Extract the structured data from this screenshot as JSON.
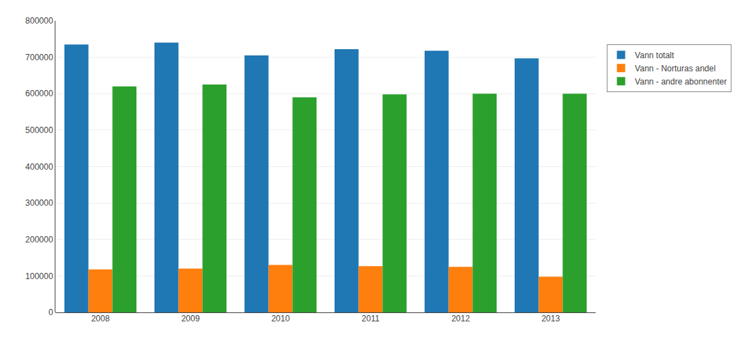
{
  "chart_data": {
    "type": "bar",
    "categories": [
      "2008",
      "2009",
      "2010",
      "2011",
      "2012",
      "2013"
    ],
    "series": [
      {
        "name": "Vann totalt",
        "values": [
          735000,
          740000,
          705000,
          722000,
          718000,
          697000
        ]
      },
      {
        "name": "Vann - Norturas andel",
        "values": [
          118000,
          120000,
          130000,
          127000,
          125000,
          98000
        ]
      },
      {
        "name": "Vann - andre abonnenter",
        "values": [
          620000,
          625000,
          590000,
          598000,
          600000,
          600000
        ]
      }
    ],
    "ylim": [
      0,
      800000
    ],
    "yticks": [
      0,
      100000,
      200000,
      300000,
      400000,
      500000,
      600000,
      700000,
      800000
    ],
    "grid": true,
    "legend": "right"
  }
}
